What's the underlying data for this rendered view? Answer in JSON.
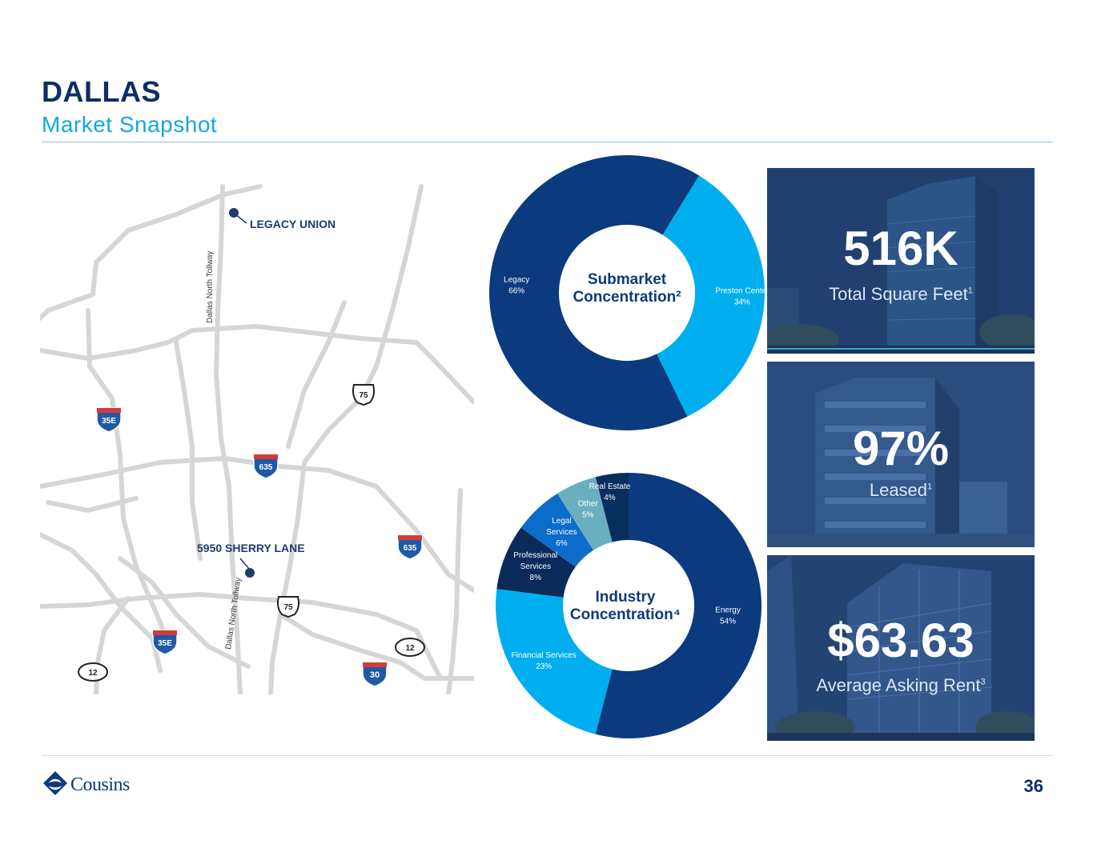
{
  "header": {
    "title": "DALLAS",
    "subtitle": "Market Snapshot"
  },
  "map": {
    "labels": {
      "legacy_union": "LEGACY UNION",
      "sherry_lane": "5950 SHERRY LANE",
      "tollway_north": "Dallas North Tollway",
      "tollway_south": "Dallas North Tollway"
    },
    "shields": {
      "i35e_north": "35E",
      "i35e_south": "35E",
      "i635_center": "635",
      "i635_east": "635",
      "i30": "30",
      "us75_north": "75",
      "us75_south": "75",
      "hwy12_west": "12",
      "hwy12_east": "12"
    },
    "colors": {
      "road": "#d6d6d6",
      "marker": "#1d3a73",
      "interstate": "#1f5aa6"
    }
  },
  "chart_data": [
    {
      "type": "pie",
      "title": "Submarket Concentration²",
      "slices": [
        {
          "name": "Legacy",
          "label": "66%",
          "value": 66,
          "color": "#0b3a7e"
        },
        {
          "name": "Preston Center",
          "label": "34%",
          "value": 34,
          "color": "#00aeef"
        }
      ]
    },
    {
      "type": "pie",
      "title": "Industry Concentration⁴",
      "slices": [
        {
          "name": "Energy",
          "label": "54%",
          "value": 54,
          "color": "#0b3a7e"
        },
        {
          "name": "Financial Services",
          "label": "23%",
          "value": 23,
          "color": "#00aeef"
        },
        {
          "name": "Professional Services",
          "label": "8%",
          "value": 8,
          "color": "#0a2a5a"
        },
        {
          "name": "Legal Services",
          "label": "6%",
          "value": 6,
          "color": "#0b6cc9"
        },
        {
          "name": "Other",
          "label": "5%",
          "value": 5,
          "color": "#6aafc0"
        },
        {
          "name": "Real Estate",
          "label": "4%",
          "value": 4,
          "color": "#082d5f"
        }
      ]
    }
  ],
  "stats": [
    {
      "value": "516K",
      "label": "Total Square Feet",
      "note": "1"
    },
    {
      "value": "97%",
      "label": "Leased",
      "note": "1"
    },
    {
      "value": "$63.63",
      "label": "Average Asking Rent",
      "note": "3"
    }
  ],
  "footer": {
    "brand": "Cousins",
    "page": "36"
  }
}
